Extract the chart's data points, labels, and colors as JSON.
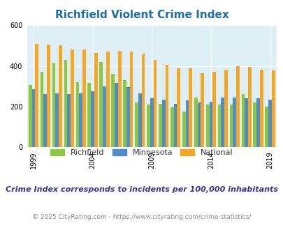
{
  "title": "Richfield Violent Crime Index",
  "subtitle": "Crime Index corresponds to incidents per 100,000 inhabitants",
  "footer": "© 2025 CityRating.com - https://www.cityrating.com/crime-statistics/",
  "years": [
    1999,
    2000,
    2001,
    2002,
    2003,
    2004,
    2005,
    2006,
    2007,
    2008,
    2009,
    2010,
    2011,
    2012,
    2013,
    2014,
    2015,
    2016,
    2017,
    2018,
    2019
  ],
  "richfield": [
    305,
    370,
    415,
    430,
    320,
    315,
    420,
    360,
    330,
    220,
    210,
    215,
    195,
    175,
    245,
    210,
    210,
    210,
    260,
    220,
    200
  ],
  "minnesota": [
    285,
    260,
    265,
    260,
    265,
    275,
    300,
    315,
    295,
    265,
    240,
    235,
    215,
    230,
    220,
    225,
    245,
    245,
    240,
    240,
    235
  ],
  "national": [
    510,
    505,
    500,
    480,
    480,
    465,
    470,
    475,
    470,
    460,
    430,
    405,
    388,
    388,
    365,
    372,
    383,
    400,
    395,
    382,
    377
  ],
  "richfield_color": "#8dc63f",
  "minnesota_color": "#4d8dcc",
  "national_color": "#f5a623",
  "fig_bg": "#ffffff",
  "plot_bg": "#ddeef5",
  "ylim": [
    0,
    600
  ],
  "yticks": [
    0,
    200,
    400,
    600
  ],
  "xtick_years": [
    1999,
    2004,
    2009,
    2014,
    2019
  ],
  "title_color": "#1a6fad",
  "subtitle_color": "#333399",
  "footer_color": "#888888",
  "title_fontsize": 11,
  "subtitle_fontsize": 8,
  "footer_fontsize": 6.5,
  "legend_fontsize": 8,
  "tick_fontsize": 7,
  "bar_width": 0.28
}
